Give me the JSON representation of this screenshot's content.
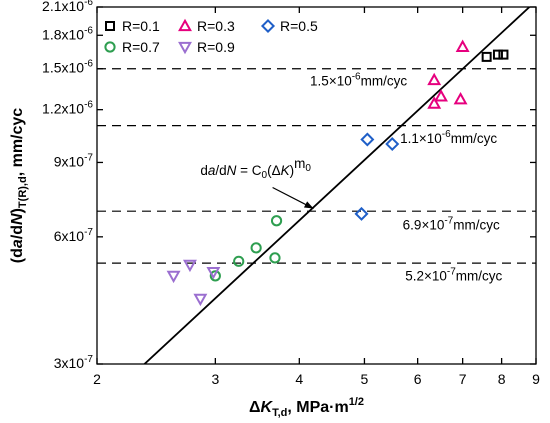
{
  "chart_data": {
    "type": "scatter",
    "xscale": "log",
    "yscale": "log",
    "xlim": [
      2,
      9
    ],
    "ylim": [
      3e-07,
      2.1e-06
    ],
    "xticks": [
      2,
      3,
      4,
      5,
      6,
      7,
      8,
      9
    ],
    "xtick_labels": [
      "2",
      "3",
      "4",
      "5",
      "6",
      "7",
      "8",
      "9"
    ],
    "yticks": [
      3e-07,
      6e-07,
      9e-07,
      1.2e-06,
      1.5e-06,
      1.8e-06,
      2.1e-06
    ],
    "ytick_labels": [
      {
        "mant": "3x10",
        "exp": "-7"
      },
      {
        "mant": "6x10",
        "exp": "-7"
      },
      {
        "mant": "9x10",
        "exp": "-7"
      },
      {
        "mant": "1.2x10",
        "exp": "-6"
      },
      {
        "mant": "1.5x10",
        "exp": "-6"
      },
      {
        "mant": "1.8x10",
        "exp": "-6"
      },
      {
        "mant": "2.1x10",
        "exp": "-6"
      }
    ],
    "xlabel": {
      "delta": "Δ",
      "K": "K",
      "sub": "T,d",
      "rest": ", MPa·m",
      "sup": "1/2"
    },
    "ylabel": {
      "open": "(d",
      "a": "a",
      "slash": "/d",
      "N": "N",
      "close": ")",
      "sub": "T(R),d",
      "rest": ", mm/cyc"
    },
    "series": [
      {
        "name": "R=0.1",
        "marker": "square",
        "color": "#000000",
        "points": [
          [
            7.6,
            1.6e-06
          ],
          [
            7.9,
            1.62e-06
          ],
          [
            8.05,
            1.62e-06
          ]
        ]
      },
      {
        "name": "R=0.3",
        "marker": "triangle-up",
        "color": "#e6007e",
        "points": [
          [
            7.0,
            1.69e-06
          ],
          [
            6.35,
            1.41e-06
          ],
          [
            6.5,
            1.29e-06
          ],
          [
            6.35,
            1.24e-06
          ],
          [
            6.95,
            1.27e-06
          ]
        ]
      },
      {
        "name": "R=0.5",
        "marker": "diamond",
        "color": "#1f5fc8",
        "points": [
          [
            5.05,
            1.02e-06
          ],
          [
            5.5,
            9.95e-07
          ],
          [
            4.95,
            6.8e-07
          ]
        ]
      },
      {
        "name": "R=0.7",
        "marker": "circle",
        "color": "#2e9e50",
        "points": [
          [
            3.7,
            6.55e-07
          ],
          [
            3.45,
            5.65e-07
          ],
          [
            3.25,
            5.25e-07
          ],
          [
            3.68,
            5.35e-07
          ],
          [
            3.0,
            4.85e-07
          ]
        ]
      },
      {
        "name": "R=0.9",
        "marker": "triangle-down",
        "color": "#9b6fd0",
        "points": [
          [
            2.75,
            5.15e-07
          ],
          [
            2.6,
            4.85e-07
          ],
          [
            2.98,
            4.95e-07
          ],
          [
            2.85,
            4.28e-07
          ]
        ]
      }
    ],
    "fit_line": {
      "from": [
        2.3,
        2.9e-07
      ],
      "to": [
        8.8,
        2.1e-06
      ],
      "color": "#000000"
    },
    "hlines": [
      {
        "y": 1.5e-06,
        "label_mant": "1.5×10",
        "label_exp": "-6",
        "label_unit": "mm/cyc",
        "label_x": 4.15,
        "label_y": 1.37e-06
      },
      {
        "y": 1.1e-06,
        "label_mant": "1.1×10",
        "label_exp": "-6",
        "label_unit": "mm/cyc",
        "label_x": 5.65,
        "label_y": 1e-06
      },
      {
        "y": 6.9e-07,
        "label_mant": "6.9×10",
        "label_exp": "-7",
        "label_unit": "mm/cyc",
        "label_x": 5.7,
        "label_y": 6.25e-07
      },
      {
        "y": 5.2e-07,
        "label_mant": "5.2×10",
        "label_exp": "-7",
        "label_unit": "mm/cyc",
        "label_x": 5.75,
        "label_y": 4.73e-07
      }
    ],
    "equation": {
      "parts": [
        "d",
        "a",
        "/d",
        "N",
        " = C",
        "0",
        "(Δ",
        "K",
        ")",
        "m",
        "0"
      ],
      "text_x": 2.85,
      "text_y": 8.4e-07,
      "arrow_from": [
        3.65,
        7.85e-07
      ],
      "arrow_to": [
        4.2,
        7e-07
      ]
    },
    "legend_position": "top-left",
    "grid": false
  }
}
